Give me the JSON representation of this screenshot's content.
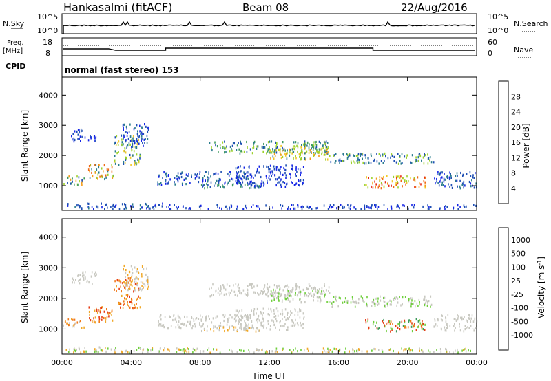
{
  "header": {
    "station": "Hankasalmi (fitACF)",
    "beam": "Beam 08",
    "date": "22/Aug/2016"
  },
  "top_panels": {
    "nsky": {
      "label": "N.Sky",
      "right_label": "N.Search",
      "left_ticks": [
        "10^5",
        "10^0"
      ],
      "right_ticks": [
        "10^5",
        "10^0"
      ]
    },
    "freq": {
      "label_line1": "Freq.",
      "label_line2": "[MHz]",
      "right_label": "Nave",
      "left_ticks": [
        "18",
        "8"
      ],
      "right_ticks": [
        "60",
        "0"
      ]
    },
    "cpid": {
      "label": "CPID",
      "text": "normal (fast stereo) 153"
    }
  },
  "chart_data": [
    {
      "type": "heatmap",
      "name": "power",
      "ylabel": "Slant Range [km]",
      "ylim": [
        180,
        4600
      ],
      "yticks": [
        "1000",
        "2000",
        "3000",
        "4000"
      ],
      "xlim": [
        0,
        24
      ],
      "colorbar_label": "Power [dB]",
      "colorbar_ticks": [
        "4",
        "8",
        "12",
        "16",
        "20",
        "24",
        "28"
      ],
      "colors": [
        "#1424e6",
        "#1f4fb4",
        "#2a7c8c",
        "#3f9b5c",
        "#9cd22a",
        "#f0c828",
        "#f59b18",
        "#ef6a14",
        "#e62814"
      ]
    },
    {
      "type": "heatmap",
      "name": "velocity",
      "ylabel": "Slant Range [km]",
      "ylim": [
        180,
        4600
      ],
      "yticks": [
        "1000",
        "2000",
        "3000",
        "4000"
      ],
      "xlim": [
        0,
        24
      ],
      "xlabel": "Time UT",
      "xticks": [
        "00:00",
        "04:00",
        "08:00",
        "12:00",
        "16:00",
        "20:00",
        "00:00"
      ],
      "colorbar_label": "Velocity [m s",
      "colorbar_label_sup": "-1",
      "colorbar_ticks": [
        "1000",
        "500",
        "100",
        "25",
        "-25",
        "-100",
        "-500",
        "-1000"
      ],
      "colors": [
        "#1f3fb0",
        "#2a6fb4",
        "#3f9b5c",
        "#6fcf3c",
        "#c8c8c0",
        "#f0a828",
        "#f07818",
        "#e63c14",
        "#e61414"
      ]
    }
  ]
}
